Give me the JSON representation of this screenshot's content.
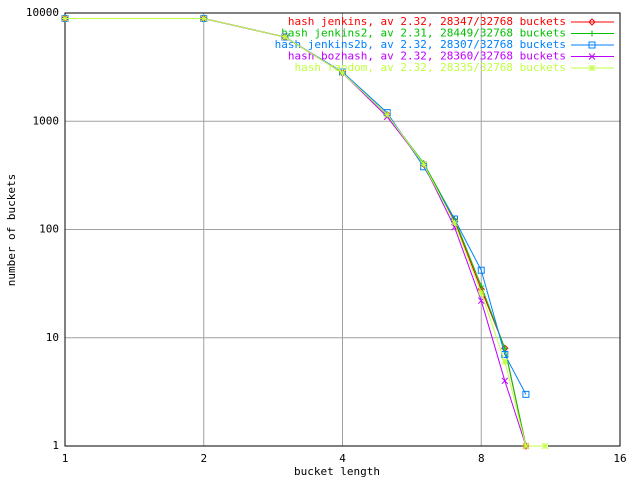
{
  "chart_data": {
    "type": "line",
    "x_label": "bucket length",
    "y_label": "number of buckets",
    "x": [
      1,
      2,
      3,
      4,
      5,
      6,
      7,
      8,
      9,
      10,
      11
    ],
    "series": [
      {
        "name": "hash jenkins, av 2.32, 28347/32768 buckets",
        "color": "#ff0000",
        "marker": "diamond",
        "values": [
          8900,
          8900,
          6000,
          2800,
          1150,
          400,
          120,
          28,
          8,
          1,
          null
        ]
      },
      {
        "name": "hash jenkins2, av 2.31, 28449/32768 buckets",
        "color": "#00c000",
        "marker": "plus",
        "values": [
          8900,
          8900,
          6000,
          2800,
          1150,
          410,
          125,
          30,
          8,
          1,
          null
        ]
      },
      {
        "name": "hash jenkins2b, av 2.32, 28307/32768 buckets",
        "color": "#0080ff",
        "marker": "square",
        "values": [
          8900,
          8900,
          6000,
          2850,
          1200,
          380,
          125,
          42,
          7,
          3,
          null
        ]
      },
      {
        "name": "hash bozhash, av 2.32, 28360/32768 buckets",
        "color": "#c000ff",
        "marker": "cross",
        "values": [
          8900,
          8900,
          6000,
          2800,
          1100,
          400,
          105,
          22,
          4,
          1,
          null
        ]
      },
      {
        "name": "hash random, av 2.32, 28335/32768 buckets",
        "color": "#c0ff40",
        "marker": "star",
        "values": [
          8900,
          8900,
          6000,
          2800,
          1150,
          400,
          115,
          26,
          6,
          1,
          1
        ]
      }
    ],
    "xlim": [
      1,
      16
    ],
    "xticks": [
      1,
      2,
      4,
      8,
      16
    ],
    "xlog": true,
    "ylim": [
      1,
      10000
    ],
    "yticks": [
      1,
      10,
      100,
      1000,
      10000
    ],
    "ylog": true,
    "grid": true,
    "legend": "top-right"
  }
}
